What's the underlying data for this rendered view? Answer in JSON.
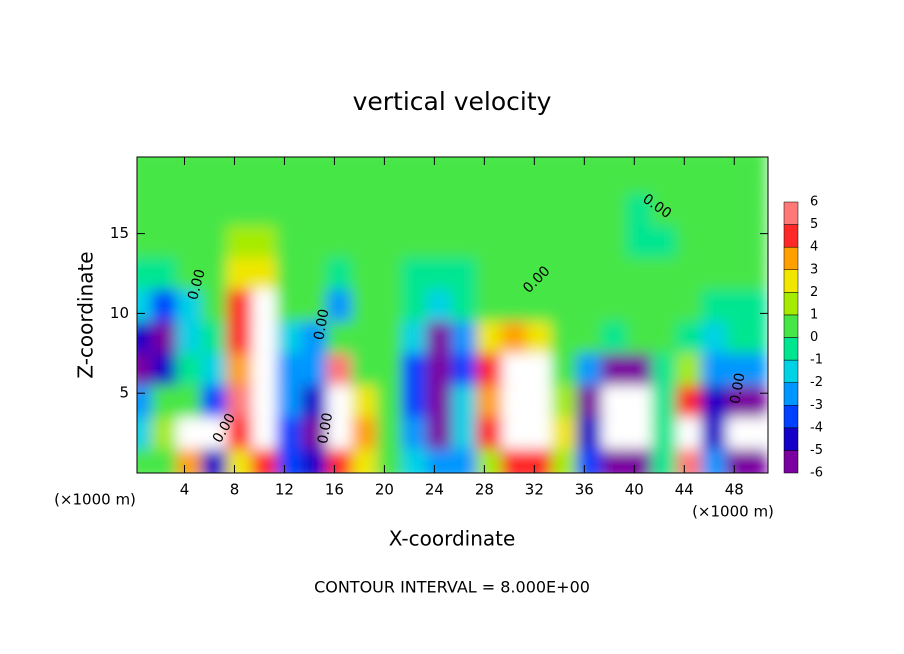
{
  "chart_data": {
    "type": "heatmap",
    "title": "vertical velocity",
    "xlabel": "X-coordinate",
    "ylabel": "Z-coordinate",
    "x_unit": "(×1000 m)",
    "footer": "CONTOUR INTERVAL = 8.000E+00",
    "xlim": [
      0.2,
      50.7
    ],
    "ylim": [
      0,
      19.8
    ],
    "xticks": [
      4,
      8,
      12,
      16,
      20,
      24,
      28,
      32,
      36,
      40,
      44,
      48
    ],
    "yticks": [
      5,
      10,
      15
    ],
    "x": [
      1,
      3,
      5,
      7,
      9,
      11,
      13,
      15,
      17,
      19,
      21,
      23,
      25,
      27,
      29,
      31,
      33,
      35,
      37,
      39,
      41,
      43,
      45,
      47,
      49
    ],
    "y": [
      1,
      3,
      5,
      7,
      9,
      11,
      13,
      15,
      17,
      19
    ],
    "z": [
      [
        0.5,
        1,
        4,
        -4,
        3,
        5,
        -3,
        -4,
        5,
        3,
        0.5,
        -1,
        -2,
        -2,
        2,
        5,
        5,
        2,
        -3,
        -5,
        -5,
        0,
        6,
        -2,
        -5
      ],
      [
        -1,
        2,
        7,
        -7,
        5,
        8,
        -3,
        -5,
        7,
        4,
        0.5,
        -2,
        -6,
        -1,
        5,
        9,
        9,
        3,
        -4,
        -8,
        -7,
        0,
        8,
        -4,
        -7
      ],
      [
        -2,
        0.5,
        1,
        -3,
        6,
        9,
        -2,
        -4,
        7,
        3,
        0.5,
        -3,
        -6,
        -1,
        4,
        9,
        8,
        2,
        -5,
        -8,
        -7,
        0,
        5,
        -4,
        -5
      ],
      [
        -5,
        -4,
        0,
        -1,
        4,
        9,
        -2,
        -2,
        6,
        1,
        0.5,
        -3,
        -6,
        -3,
        5,
        9,
        7,
        1,
        -2,
        -6,
        -5,
        0,
        2,
        -2,
        -2
      ],
      [
        -4,
        -5,
        -1,
        0,
        5,
        8,
        -1,
        -2,
        1,
        0.5,
        0.5,
        -1,
        -5,
        -2,
        3,
        4,
        3,
        0.5,
        0.5,
        0,
        0.5,
        0.5,
        0,
        -1,
        0
      ],
      [
        -1,
        -3,
        -1,
        1,
        5,
        7,
        1,
        0.5,
        -2,
        0.5,
        0.5,
        -0.5,
        -1,
        -0.5,
        0.5,
        0.5,
        0.5,
        0.5,
        0.5,
        0.5,
        0.5,
        0.5,
        0.5,
        0,
        0
      ],
      [
        0,
        0,
        0.5,
        1,
        3,
        3,
        1,
        0.5,
        0,
        0.5,
        0.5,
        0,
        0,
        0,
        0.5,
        0.5,
        0.5,
        0.5,
        0.5,
        0.5,
        0.5,
        0.5,
        0.5,
        0.5,
        0.5
      ],
      [
        0.5,
        0.5,
        0.5,
        1,
        2,
        2,
        0.5,
        0.5,
        0.5,
        0.5,
        0.5,
        0.5,
        0.5,
        0.5,
        0.5,
        1,
        1,
        0.5,
        0.5,
        0.5,
        0,
        0,
        0.5,
        0.5,
        0.5
      ],
      [
        0.5,
        0.5,
        0.5,
        0.5,
        1,
        0.5,
        0.5,
        0.5,
        0.5,
        0.5,
        0.5,
        0.5,
        0.5,
        0.5,
        0.5,
        0.5,
        0.5,
        0.5,
        0.5,
        0.5,
        0,
        0.5,
        0.5,
        0.5,
        0.5
      ],
      [
        0.5,
        0.5,
        0.5,
        0.5,
        0.5,
        0.5,
        0.5,
        0.5,
        0.5,
        0.5,
        0.5,
        0.5,
        0.5,
        0.5,
        0.5,
        0.5,
        0.5,
        0.5,
        0.5,
        0.5,
        0.5,
        0.5,
        0.5,
        0.5,
        0.5
      ]
    ],
    "levels": [
      -6,
      -5,
      -4,
      -3,
      -2,
      -1,
      0,
      1,
      2,
      3,
      4,
      5,
      6
    ],
    "colors": [
      "#7a00a0",
      "#1400c8",
      "#0040ff",
      "#0096ff",
      "#00d2e6",
      "#00e690",
      "#46e646",
      "#a5eb00",
      "#f0e600",
      "#ffa000",
      "#ff2828",
      "#ff7878"
    ],
    "out_of_range_color": "#ffffff",
    "contour_labels": [
      {
        "text": "0.00",
        "x": 5,
        "y": 11.8,
        "angle": -75
      },
      {
        "text": "0.00",
        "x": 15,
        "y": 9.3,
        "angle": -80
      },
      {
        "text": "0.00",
        "x": 15.3,
        "y": 2.8,
        "angle": -80
      },
      {
        "text": "0.00",
        "x": 7.2,
        "y": 2.8,
        "angle": -60
      },
      {
        "text": "0.00",
        "x": 32.2,
        "y": 12.1,
        "angle": -45
      },
      {
        "text": "0.00",
        "x": 41.8,
        "y": 16.7,
        "angle": 35
      },
      {
        "text": "0.00",
        "x": 48.3,
        "y": 5.3,
        "angle": -80
      }
    ]
  }
}
